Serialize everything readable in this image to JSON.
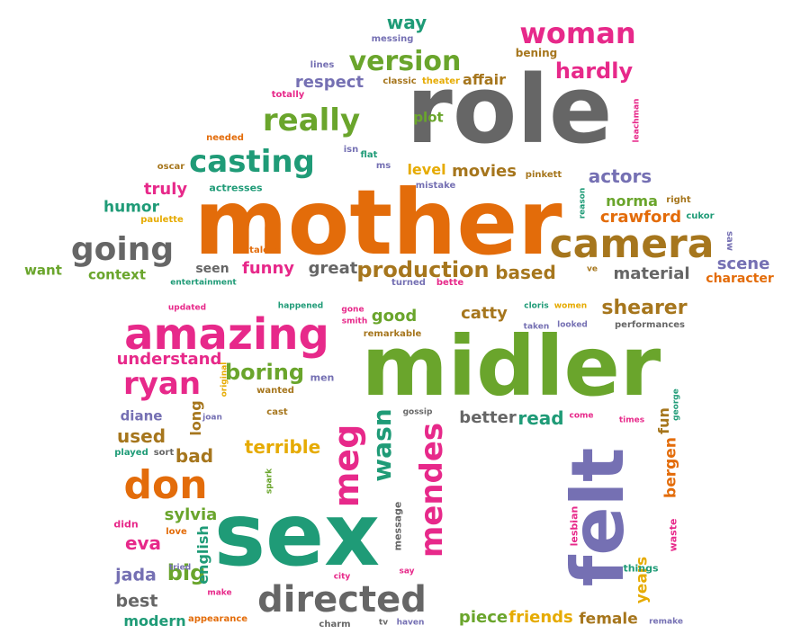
{
  "palette": {
    "orange": "#e36c0a",
    "green": "#6aa52c",
    "teal": "#1f9b77",
    "pink": "#e7298a",
    "purple": "#7570b3",
    "grey": "#666666",
    "gold": "#e6ab02",
    "brown": "#a6761d"
  },
  "words": [
    {
      "text": "role",
      "color": "grey"
    },
    {
      "text": "mother",
      "color": "orange"
    },
    {
      "text": "midler",
      "color": "green"
    },
    {
      "text": "sex",
      "color": "teal"
    },
    {
      "text": "felt",
      "color": "purple"
    },
    {
      "text": "camera",
      "color": "brown"
    },
    {
      "text": "amazing",
      "color": "pink"
    },
    {
      "text": "directed",
      "color": "grey"
    },
    {
      "text": "going",
      "color": "grey"
    },
    {
      "text": "casting",
      "color": "teal"
    },
    {
      "text": "really",
      "color": "green"
    },
    {
      "text": "version",
      "color": "green"
    },
    {
      "text": "woman",
      "color": "pink"
    },
    {
      "text": "don",
      "color": "orange"
    },
    {
      "text": "meg",
      "color": "pink"
    },
    {
      "text": "ryan",
      "color": "pink"
    },
    {
      "text": "mendes",
      "color": "pink"
    },
    {
      "text": "production",
      "color": "brown"
    },
    {
      "text": "wasn",
      "color": "teal"
    },
    {
      "text": "hardly",
      "color": "pink"
    },
    {
      "text": "boring",
      "color": "green"
    },
    {
      "text": "terrible",
      "color": "gold"
    },
    {
      "text": "shearer",
      "color": "brown"
    },
    {
      "text": "understand",
      "color": "pink"
    },
    {
      "text": "respect",
      "color": "purple"
    },
    {
      "text": "funny",
      "color": "pink"
    },
    {
      "text": "actors",
      "color": "purple"
    },
    {
      "text": "great",
      "color": "grey"
    },
    {
      "text": "based",
      "color": "brown"
    },
    {
      "text": "material",
      "color": "grey"
    },
    {
      "text": "scene",
      "color": "purple"
    },
    {
      "text": "crawford",
      "color": "orange"
    },
    {
      "text": "norma",
      "color": "green"
    },
    {
      "text": "movies",
      "color": "brown"
    },
    {
      "text": "level",
      "color": "gold"
    },
    {
      "text": "affair",
      "color": "brown"
    },
    {
      "text": "plot",
      "color": "green"
    },
    {
      "text": "truly",
      "color": "pink"
    },
    {
      "text": "humor",
      "color": "teal"
    },
    {
      "text": "bad",
      "color": "brown"
    },
    {
      "text": "used",
      "color": "brown"
    },
    {
      "text": "big",
      "color": "green"
    },
    {
      "text": "jada",
      "color": "purple"
    },
    {
      "text": "best",
      "color": "grey"
    },
    {
      "text": "modern",
      "color": "teal"
    },
    {
      "text": "sylvia",
      "color": "green"
    },
    {
      "text": "eva",
      "color": "pink"
    },
    {
      "text": "english",
      "color": "teal"
    },
    {
      "text": "read",
      "color": "teal"
    },
    {
      "text": "better",
      "color": "grey"
    },
    {
      "text": "good",
      "color": "green"
    },
    {
      "text": "catty",
      "color": "brown"
    },
    {
      "text": "piece",
      "color": "green"
    },
    {
      "text": "friends",
      "color": "gold"
    },
    {
      "text": "female",
      "color": "brown"
    },
    {
      "text": "years",
      "color": "gold"
    },
    {
      "text": "bergen",
      "color": "orange"
    },
    {
      "text": "fun",
      "color": "brown"
    },
    {
      "text": "diane",
      "color": "purple"
    },
    {
      "text": "long",
      "color": "brown"
    },
    {
      "text": "context",
      "color": "green"
    },
    {
      "text": "want",
      "color": "green"
    },
    {
      "text": "seen",
      "color": "grey"
    },
    {
      "text": "character",
      "color": "orange"
    },
    {
      "text": "way",
      "color": "teal"
    },
    {
      "text": "messing",
      "color": "purple"
    },
    {
      "text": "bening",
      "color": "brown"
    },
    {
      "text": "lines",
      "color": "purple"
    },
    {
      "text": "classic",
      "color": "brown"
    },
    {
      "text": "theater",
      "color": "gold"
    },
    {
      "text": "totally",
      "color": "pink"
    },
    {
      "text": "needed",
      "color": "orange"
    },
    {
      "text": "isn",
      "color": "purple"
    },
    {
      "text": "flat",
      "color": "teal"
    },
    {
      "text": "ms",
      "color": "purple"
    },
    {
      "text": "oscar",
      "color": "brown"
    },
    {
      "text": "actresses",
      "color": "teal"
    },
    {
      "text": "mistake",
      "color": "purple"
    },
    {
      "text": "pinkett",
      "color": "brown"
    },
    {
      "text": "reason",
      "color": "teal"
    },
    {
      "text": "right",
      "color": "brown"
    },
    {
      "text": "cukor",
      "color": "teal"
    },
    {
      "text": "leachman",
      "color": "pink"
    },
    {
      "text": "paulette",
      "color": "gold"
    },
    {
      "text": "talent",
      "color": "orange"
    },
    {
      "text": "saw",
      "color": "purple"
    },
    {
      "text": "ve",
      "color": "brown"
    },
    {
      "text": "entertainment",
      "color": "teal"
    },
    {
      "text": "turned",
      "color": "purple"
    },
    {
      "text": "bette",
      "color": "pink"
    },
    {
      "text": "updated",
      "color": "pink"
    },
    {
      "text": "happened",
      "color": "teal"
    },
    {
      "text": "gone",
      "color": "pink"
    },
    {
      "text": "smith",
      "color": "pink"
    },
    {
      "text": "remarkable",
      "color": "brown"
    },
    {
      "text": "cloris",
      "color": "teal"
    },
    {
      "text": "women",
      "color": "gold"
    },
    {
      "text": "taken",
      "color": "purple"
    },
    {
      "text": "looked",
      "color": "purple"
    },
    {
      "text": "performances",
      "color": "grey"
    },
    {
      "text": "original",
      "color": "gold"
    },
    {
      "text": "wanted",
      "color": "brown"
    },
    {
      "text": "men",
      "color": "purple"
    },
    {
      "text": "joan",
      "color": "purple"
    },
    {
      "text": "cast",
      "color": "brown"
    },
    {
      "text": "gossip",
      "color": "grey"
    },
    {
      "text": "come",
      "color": "pink"
    },
    {
      "text": "times",
      "color": "pink"
    },
    {
      "text": "george",
      "color": "teal"
    },
    {
      "text": "played",
      "color": "teal"
    },
    {
      "text": "sort",
      "color": "grey"
    },
    {
      "text": "spark",
      "color": "green"
    },
    {
      "text": "message",
      "color": "grey"
    },
    {
      "text": "didn",
      "color": "pink"
    },
    {
      "text": "love",
      "color": "orange"
    },
    {
      "text": "lesbian",
      "color": "pink"
    },
    {
      "text": "waste",
      "color": "pink"
    },
    {
      "text": "tried",
      "color": "purple"
    },
    {
      "text": "make",
      "color": "pink"
    },
    {
      "text": "city",
      "color": "pink"
    },
    {
      "text": "say",
      "color": "pink"
    },
    {
      "text": "things",
      "color": "teal"
    },
    {
      "text": "appearance",
      "color": "orange"
    },
    {
      "text": "charm",
      "color": "grey"
    },
    {
      "text": "tv",
      "color": "grey"
    },
    {
      "text": "haven",
      "color": "purple"
    },
    {
      "text": "remake",
      "color": "purple"
    }
  ]
}
